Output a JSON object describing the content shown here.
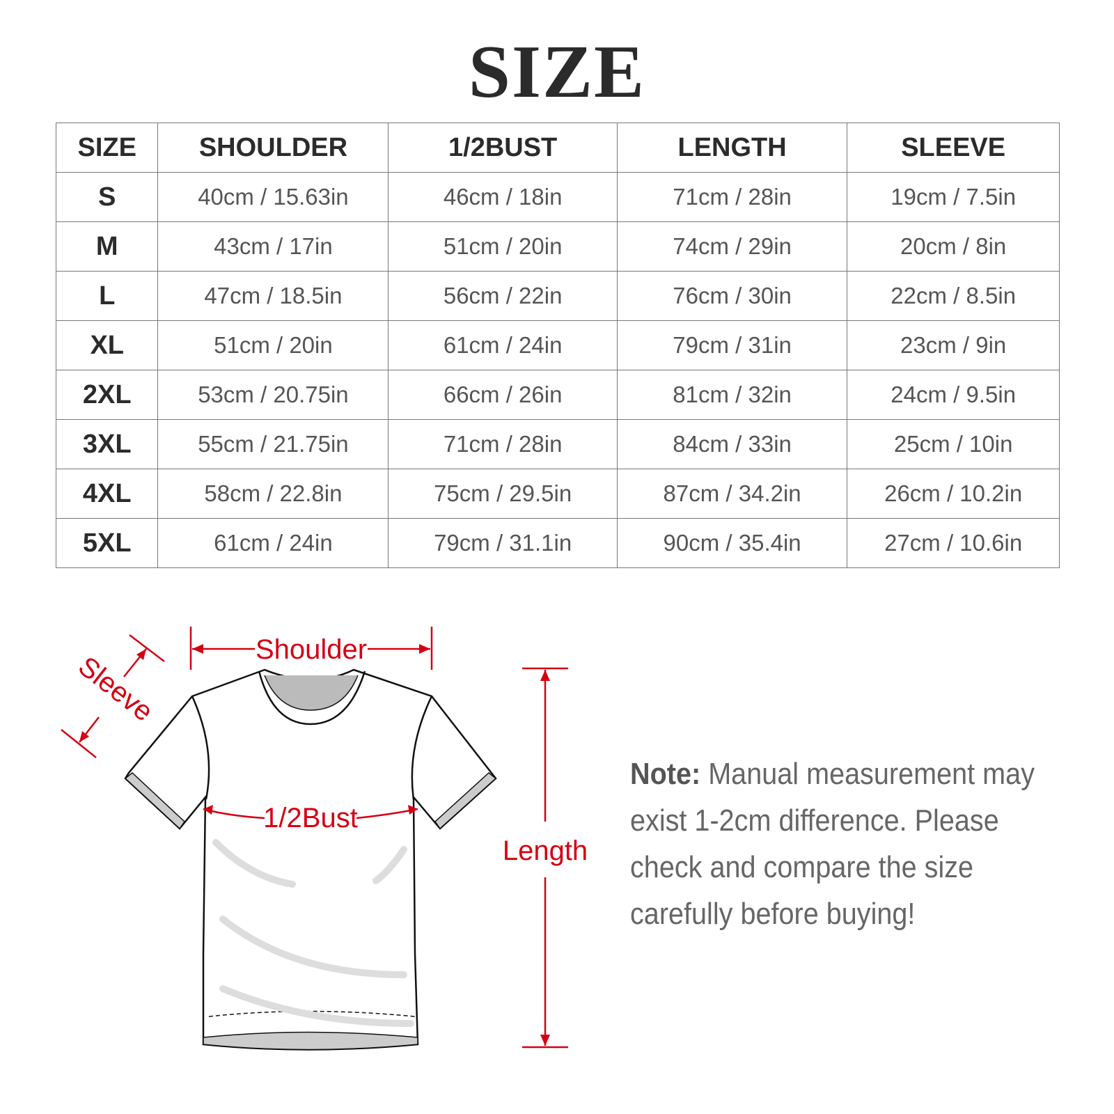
{
  "title": "SIZE",
  "table": {
    "headers": [
      "SIZE",
      "SHOULDER",
      "1/2BUST",
      "LENGTH",
      "SLEEVE"
    ],
    "rows": [
      [
        "S",
        "40cm / 15.63in",
        "46cm / 18in",
        "71cm / 28in",
        "19cm / 7.5in"
      ],
      [
        "M",
        "43cm / 17in",
        "51cm / 20in",
        "74cm / 29in",
        "20cm / 8in"
      ],
      [
        "L",
        "47cm / 18.5in",
        "56cm / 22in",
        "76cm / 30in",
        "22cm / 8.5in"
      ],
      [
        "XL",
        "51cm / 20in",
        "61cm / 24in",
        "79cm / 31in",
        "23cm / 9in"
      ],
      [
        "2XL",
        "53cm / 20.75in",
        "66cm / 26in",
        "81cm / 32in",
        "24cm / 9.5in"
      ],
      [
        "3XL",
        "55cm / 21.75in",
        "71cm / 28in",
        "84cm / 33in",
        "25cm / 10in"
      ],
      [
        "4XL",
        "58cm / 22.8in",
        "75cm / 29.5in",
        "87cm / 34.2in",
        "26cm / 10.2in"
      ],
      [
        "5XL",
        "61cm / 24in",
        "79cm / 31.1in",
        "90cm / 35.4in",
        "27cm / 10.6in"
      ]
    ]
  },
  "diagram": {
    "labels": {
      "shoulder": "Shoulder",
      "sleeve": "Sleeve",
      "bust": "1/2Bust",
      "length": "Length"
    },
    "accent_color": "#d40012"
  },
  "note": {
    "label": "Note:",
    "text": " Manual measurement may exist 1-2cm difference. Please check and compare the size carefully before buying!"
  }
}
